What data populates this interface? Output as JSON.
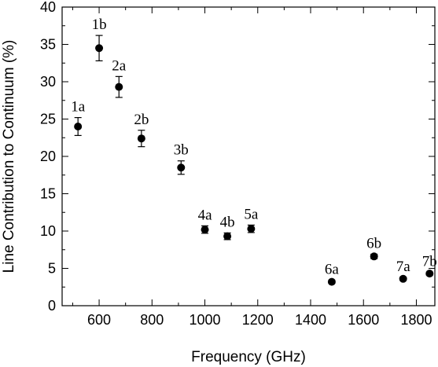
{
  "chart_data": {
    "type": "scatter",
    "title": "",
    "xlabel": "Frequency (GHz)",
    "ylabel": "Line Contribution to Continuum (%)",
    "xlim": [
      460,
      1870
    ],
    "ylim": [
      0,
      40
    ],
    "xticks": [
      "600",
      "800",
      "1000",
      "1200",
      "1400",
      "1600",
      "1800"
    ],
    "yticks": [
      "0",
      "5",
      "10",
      "15",
      "20",
      "25",
      "30",
      "35",
      "40"
    ],
    "grid": false,
    "points": [
      {
        "label": "1a",
        "x": 520,
        "y": 24.0,
        "err": 1.2
      },
      {
        "label": "1b",
        "x": 600,
        "y": 34.5,
        "err": 1.7
      },
      {
        "label": "2a",
        "x": 675,
        "y": 29.3,
        "err": 1.4
      },
      {
        "label": "2b",
        "x": 760,
        "y": 22.4,
        "err": 1.1
      },
      {
        "label": "3b",
        "x": 910,
        "y": 18.5,
        "err": 0.9
      },
      {
        "label": "4a",
        "x": 1000,
        "y": 10.2,
        "err": 0.5
      },
      {
        "label": "4b",
        "x": 1085,
        "y": 9.3,
        "err": 0.45
      },
      {
        "label": "5a",
        "x": 1175,
        "y": 10.3,
        "err": 0.5
      },
      {
        "label": "6a",
        "x": 1480,
        "y": 3.2,
        "err": 0.2
      },
      {
        "label": "6b",
        "x": 1640,
        "y": 6.6,
        "err": 0.3
      },
      {
        "label": "7a",
        "x": 1750,
        "y": 3.6,
        "err": 0.2
      },
      {
        "label": "7b",
        "x": 1850,
        "y": 4.3,
        "err": 0.2
      }
    ]
  }
}
